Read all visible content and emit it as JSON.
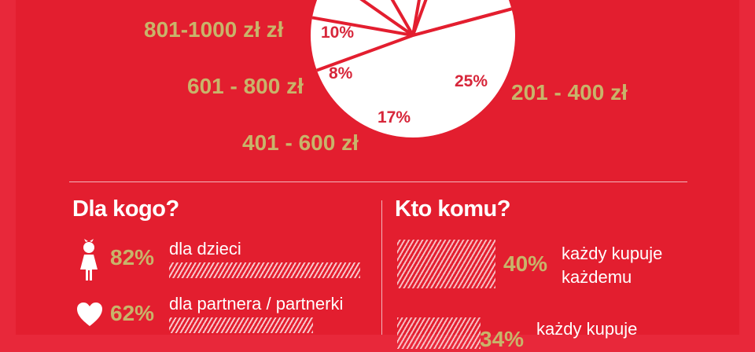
{
  "chart_data": [
    {
      "type": "pie",
      "slices": [
        {
          "label": "801-1000 zł zł",
          "value_label": "10%",
          "value": 10
        },
        {
          "label": "601 - 800 zł",
          "value_label": "8%",
          "value": 8
        },
        {
          "label": "401 - 600 zł",
          "value_label": "17%",
          "value": 17
        },
        {
          "label": "201 - 400 zł",
          "value_label": "25%",
          "value": 25
        }
      ]
    },
    {
      "type": "bar",
      "title": "Dla kogo?",
      "categories": [
        "dla dzieci",
        "dla partnera / partnerki"
      ],
      "values": [
        82,
        62
      ],
      "value_labels": [
        "82%",
        "62%"
      ],
      "icons": [
        "child-icon",
        "heart-icon"
      ]
    },
    {
      "type": "bar",
      "title": "Kto komu?",
      "categories": [
        "każdy kupuje każdemu",
        "każdy kupuje"
      ],
      "values": [
        40,
        34
      ],
      "value_labels": [
        "40%",
        "34%"
      ]
    }
  ],
  "colors": {
    "background": "#e31e2f",
    "accent": "#c8b46a",
    "text": "#ffffff"
  }
}
